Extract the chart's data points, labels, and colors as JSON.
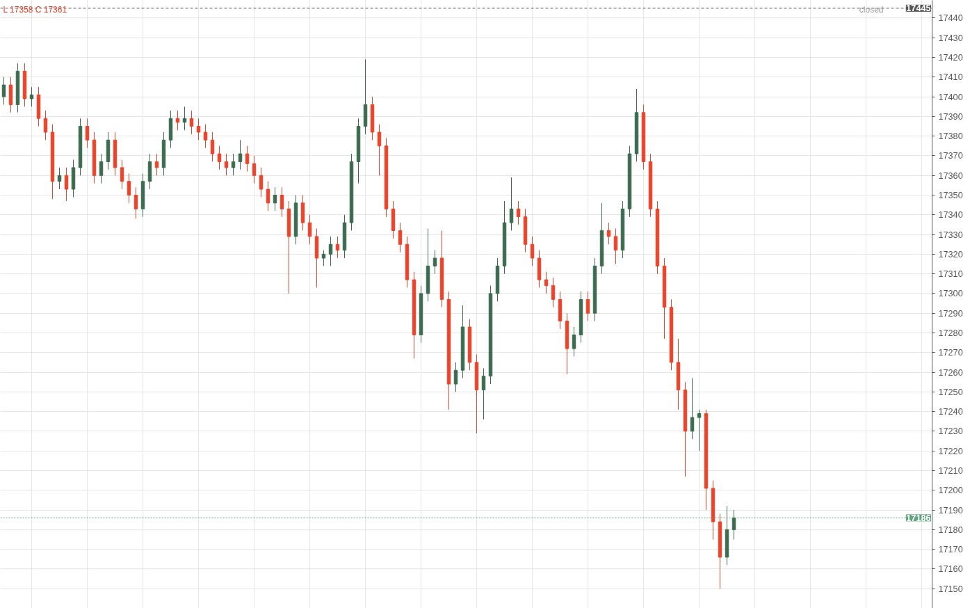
{
  "chart_data": {
    "type": "candlestick",
    "categories": [
      null,
      null,
      null,
      null,
      null,
      null,
      null,
      null,
      null,
      null,
      null,
      null,
      null,
      null,
      null,
      null,
      null,
      null,
      null,
      null,
      null,
      null,
      null,
      null,
      null,
      null,
      null,
      null,
      null,
      null,
      null,
      null,
      null,
      null,
      null,
      null,
      null,
      null,
      null,
      null,
      null,
      null,
      null,
      null,
      null,
      null,
      null,
      null,
      null,
      null,
      null,
      null,
      null,
      null,
      null,
      null,
      null,
      null,
      null,
      null,
      null,
      null,
      null,
      null,
      null,
      null,
      null,
      null,
      null,
      null,
      null,
      null,
      null,
      null,
      null,
      null,
      null,
      null,
      null,
      null,
      null,
      null,
      null,
      null,
      null,
      null,
      null,
      null,
      null,
      null,
      null,
      null,
      null,
      null,
      null,
      null,
      null,
      null,
      null,
      null,
      null,
      null,
      null,
      null,
      null,
      null,
      null,
      null,
      null,
      null,
      null,
      null,
      null,
      null,
      null,
      null,
      null,
      null,
      null,
      null,
      null,
      null,
      null,
      null,
      null,
      null,
      null,
      null,
      null,
      null,
      null,
      null,
      null,
      null
    ],
    "ohlc": [
      [
        17400,
        17410,
        17396,
        17406
      ],
      [
        17406,
        17410,
        17392,
        17396
      ],
      [
        17396,
        17417,
        17392,
        17413
      ],
      [
        17413,
        17417,
        17395,
        17399
      ],
      [
        17399,
        17405,
        17395,
        17401
      ],
      [
        17401,
        17405,
        17385,
        17389
      ],
      [
        17389,
        17393,
        17378,
        17382
      ],
      [
        17382,
        17386,
        17348,
        17357
      ],
      [
        17357,
        17364,
        17353,
        17360
      ],
      [
        17360,
        17364,
        17347,
        17353
      ],
      [
        17353,
        17368,
        17349,
        17364
      ],
      [
        17364,
        17389,
        17360,
        17385
      ],
      [
        17385,
        17389,
        17374,
        17378
      ],
      [
        17378,
        17382,
        17356,
        17360
      ],
      [
        17360,
        17371,
        17356,
        17367
      ],
      [
        17367,
        17382,
        17363,
        17378
      ],
      [
        17378,
        17382,
        17360,
        17364
      ],
      [
        17364,
        17368,
        17353,
        17357
      ],
      [
        17357,
        17361,
        17346,
        17350
      ],
      [
        17350,
        17354,
        17338,
        17343
      ],
      [
        17343,
        17361,
        17339,
        17357
      ],
      [
        17357,
        17371,
        17353,
        17367
      ],
      [
        17367,
        17371,
        17360,
        17364
      ],
      [
        17364,
        17382,
        17360,
        17378
      ],
      [
        17378,
        17393,
        17374,
        17389
      ],
      [
        17389,
        17393,
        17383,
        17387
      ],
      [
        17387,
        17395,
        17383,
        17389
      ],
      [
        17389,
        17393,
        17381,
        17385
      ],
      [
        17385,
        17389,
        17378,
        17382
      ],
      [
        17382,
        17386,
        17374,
        17378
      ],
      [
        17378,
        17382,
        17367,
        17371
      ],
      [
        17371,
        17375,
        17363,
        17367
      ],
      [
        17367,
        17371,
        17360,
        17364
      ],
      [
        17364,
        17371,
        17360,
        17367
      ],
      [
        17367,
        17378,
        17363,
        17371
      ],
      [
        17371,
        17375,
        17362,
        17366
      ],
      [
        17366,
        17370,
        17356,
        17360
      ],
      [
        17360,
        17364,
        17349,
        17353
      ],
      [
        17353,
        17357,
        17342,
        17346
      ],
      [
        17346,
        17354,
        17342,
        17350
      ],
      [
        17350,
        17354,
        17339,
        17343
      ],
      [
        17343,
        17347,
        17300,
        17329
      ],
      [
        17329,
        17350,
        17325,
        17346
      ],
      [
        17346,
        17350,
        17332,
        17336
      ],
      [
        17336,
        17340,
        17325,
        17329
      ],
      [
        17329,
        17333,
        17303,
        17318
      ],
      [
        17318,
        17322,
        17314,
        17320
      ],
      [
        17320,
        17329,
        17314,
        17325
      ],
      [
        17325,
        17329,
        17318,
        17322
      ],
      [
        17322,
        17340,
        17318,
        17336
      ],
      [
        17336,
        17371,
        17332,
        17367
      ],
      [
        17367,
        17389,
        17356,
        17385
      ],
      [
        17385,
        17419,
        17381,
        17396
      ],
      [
        17396,
        17400,
        17378,
        17382
      ],
      [
        17382,
        17386,
        17360,
        17375
      ],
      [
        17375,
        17379,
        17339,
        17343
      ],
      [
        17343,
        17347,
        17328,
        17332
      ],
      [
        17332,
        17336,
        17321,
        17325
      ],
      [
        17325,
        17329,
        17303,
        17307
      ],
      [
        17307,
        17311,
        17267,
        17279
      ],
      [
        17279,
        17304,
        17275,
        17300
      ],
      [
        17300,
        17333,
        17296,
        17314
      ],
      [
        17314,
        17322,
        17310,
        17318
      ],
      [
        17318,
        17332,
        17293,
        17297
      ],
      [
        17297,
        17301,
        17241,
        17254
      ],
      [
        17254,
        17265,
        17250,
        17261
      ],
      [
        17261,
        17294,
        17257,
        17283
      ],
      [
        17283,
        17287,
        17261,
        17265
      ],
      [
        17265,
        17269,
        17229,
        17251
      ],
      [
        17251,
        17262,
        17236,
        17258
      ],
      [
        17258,
        17304,
        17254,
        17300
      ],
      [
        17300,
        17318,
        17296,
        17314
      ],
      [
        17314,
        17347,
        17310,
        17336
      ],
      [
        17336,
        17359,
        17332,
        17343
      ],
      [
        17343,
        17347,
        17335,
        17339
      ],
      [
        17339,
        17343,
        17321,
        17325
      ],
      [
        17325,
        17329,
        17314,
        17318
      ],
      [
        17318,
        17322,
        17303,
        17307
      ],
      [
        17307,
        17311,
        17300,
        17304
      ],
      [
        17304,
        17308,
        17293,
        17297
      ],
      [
        17297,
        17301,
        17282,
        17286
      ],
      [
        17286,
        17290,
        17259,
        17272
      ],
      [
        17272,
        17283,
        17268,
        17279
      ],
      [
        17279,
        17301,
        17275,
        17297
      ],
      [
        17297,
        17301,
        17286,
        17290
      ],
      [
        17290,
        17318,
        17286,
        17314
      ],
      [
        17314,
        17346,
        17310,
        17332
      ],
      [
        17332,
        17336,
        17325,
        17329
      ],
      [
        17329,
        17333,
        17315,
        17322
      ],
      [
        17322,
        17347,
        17318,
        17343
      ],
      [
        17343,
        17375,
        17339,
        17371
      ],
      [
        17371,
        17404,
        17367,
        17392
      ],
      [
        17392,
        17396,
        17363,
        17367
      ],
      [
        17367,
        17371,
        17339,
        17343
      ],
      [
        17343,
        17347,
        17310,
        17314
      ],
      [
        17314,
        17318,
        17277,
        17293
      ],
      [
        17293,
        17297,
        17261,
        17265
      ],
      [
        17265,
        17277,
        17241,
        17251
      ],
      [
        17251,
        17255,
        17207,
        17230
      ],
      [
        17230,
        17257,
        17226,
        17237
      ],
      [
        17237,
        17241,
        17220,
        17239
      ],
      [
        17239,
        17241,
        17190,
        17201
      ],
      [
        17201,
        17205,
        17175,
        17184
      ],
      [
        17184,
        17188,
        17150,
        17166
      ],
      [
        17166,
        17192,
        17162,
        17180
      ],
      [
        17180,
        17190,
        17175,
        17186
      ],
      null,
      null,
      null,
      null,
      null,
      null,
      null,
      null,
      null,
      null,
      null,
      null,
      null,
      null,
      null,
      null,
      null,
      null,
      null,
      null,
      null,
      null,
      null,
      null,
      null,
      null,
      null,
      null
    ],
    "colors": [
      "#3d6b50",
      "#e8452c",
      "#3d6b50",
      "#e8452c",
      "#3d6b50",
      "#e8452c",
      "#e8452c",
      "#e8452c",
      "#3d6b50",
      "#e8452c",
      "#3d6b50",
      "#3d6b50",
      "#e8452c",
      "#e8452c",
      "#3d6b50",
      "#3d6b50",
      "#e8452c",
      "#e8452c",
      "#e8452c",
      "#e8452c",
      "#3d6b50",
      "#3d6b50",
      "#e8452c",
      "#3d6b50",
      "#3d6b50",
      "#e8452c",
      "#3d6b50",
      "#e8452c",
      "#e8452c",
      "#e8452c",
      "#e8452c",
      "#e8452c",
      "#e8452c",
      "#3d6b50",
      "#3d6b50",
      "#e8452c",
      "#e8452c",
      "#e8452c",
      "#e8452c",
      "#3d6b50",
      "#e8452c",
      "#e8452c",
      "#3d6b50",
      "#e8452c",
      "#e8452c",
      "#e8452c",
      "#3d6b50",
      "#3d6b50",
      "#e8452c",
      "#3d6b50",
      "#3d6b50",
      "#3d6b50",
      "#3d6b50",
      "#e8452c",
      "#e8452c",
      "#e8452c",
      "#e8452c",
      "#e8452c",
      "#e8452c",
      "#e8452c",
      "#3d6b50",
      "#3d6b50",
      "#3d6b50",
      "#e8452c",
      "#e8452c",
      "#3d6b50",
      "#3d6b50",
      "#e8452c",
      "#e8452c",
      "#3d6b50",
      "#3d6b50",
      "#3d6b50",
      "#3d6b50",
      "#3d6b50",
      "#e8452c",
      "#e8452c",
      "#e8452c",
      "#e8452c",
      "#e8452c",
      "#e8452c",
      "#e8452c",
      "#e8452c",
      "#3d6b50",
      "#3d6b50",
      "#e8452c",
      "#3d6b50",
      "#3d6b50",
      "#e8452c",
      "#e8452c",
      "#3d6b50",
      "#3d6b50",
      "#3d6b50",
      "#e8452c",
      "#e8452c",
      "#e8452c",
      "#e8452c",
      "#e8452c",
      "#e8452c",
      "#e8452c",
      "#3d6b50",
      "#3d6b50",
      "#e8452c",
      "#e8452c",
      "#e8452c",
      "#3d6b50",
      "#3d6b50",
      null,
      null,
      null,
      null,
      null,
      null,
      null,
      null,
      null,
      null,
      null,
      null,
      null,
      null,
      null,
      null,
      null,
      null,
      null,
      null,
      null,
      null,
      null,
      null,
      null,
      null,
      null,
      null
    ],
    "ylim": [
      17140,
      17449
    ],
    "yticks": [
      17150,
      17160,
      17170,
      17180,
      17190,
      17200,
      17210,
      17220,
      17230,
      17240,
      17250,
      17260,
      17270,
      17280,
      17290,
      17300,
      17310,
      17320,
      17330,
      17340,
      17350,
      17360,
      17370,
      17380,
      17390,
      17400,
      17410,
      17420,
      17430,
      17440
    ],
    "ref_lines": [
      {
        "axis": "y",
        "value": 17445,
        "label": "17445",
        "color": "#555555",
        "line_style": "dashed"
      },
      {
        "axis": "y",
        "value": 17186,
        "label": "17186",
        "color": "#5fa37c",
        "line_style": "dotted"
      }
    ],
    "annotations": [
      "L 17358 C 17361",
      "closed"
    ],
    "grid": true,
    "tick_labels": "y"
  }
}
